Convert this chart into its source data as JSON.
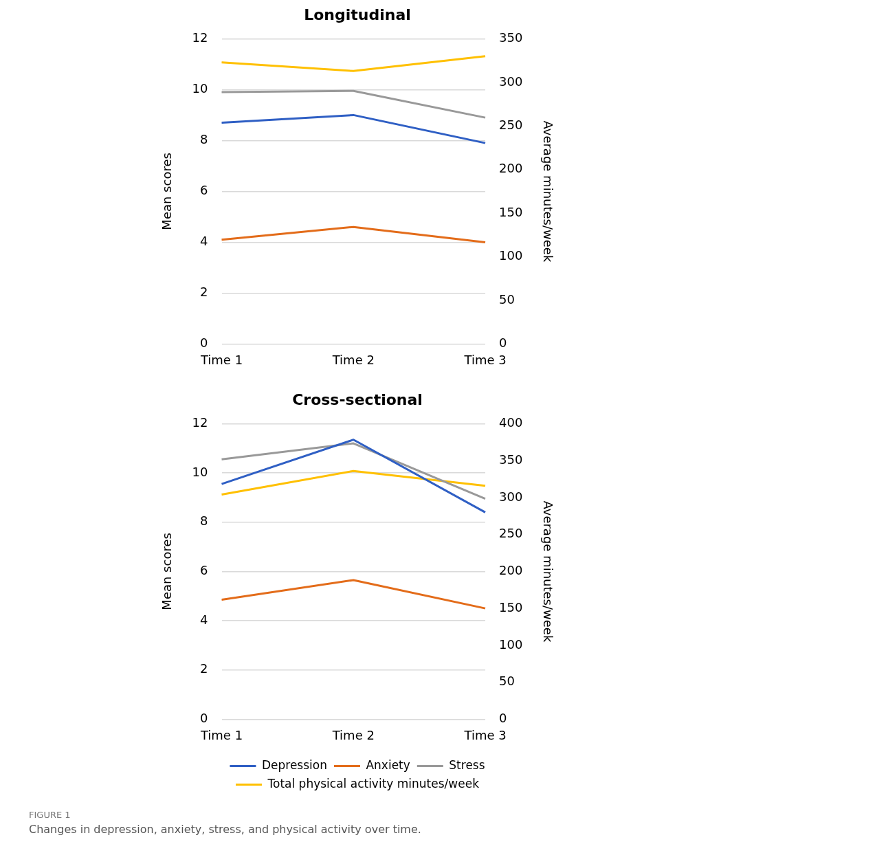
{
  "chart_data": [
    {
      "type": "line",
      "title": "Longitudinal",
      "ylabel": "Mean scores",
      "y2label": "Average minutes/week",
      "categories": [
        "Time 1",
        "Time 2",
        "Time 3"
      ],
      "ylim": [
        0,
        12
      ],
      "yticks": [
        0,
        2,
        4,
        6,
        8,
        10,
        12
      ],
      "y2lim": [
        0,
        350
      ],
      "y2ticks": [
        0,
        50,
        100,
        150,
        200,
        250,
        300,
        350
      ],
      "grid": "y",
      "legend": false,
      "marker": "none",
      "line_style": "solid",
      "series": [
        {
          "color": "#2f5fc4",
          "values": [
            8.7,
            9.0,
            7.9
          ]
        },
        {
          "color": "#e36c1a",
          "values": [
            4.1,
            4.6,
            4.0
          ]
        },
        {
          "color": "#999999",
          "values": [
            9.9,
            9.95,
            8.9
          ]
        },
        {
          "color": "#ffc000",
          "values": [
            323,
            313,
            330
          ],
          "axis": "y2"
        }
      ]
    },
    {
      "type": "line",
      "title": "Cross-sectional",
      "ylabel": "Mean scores",
      "y2label": "Average minutes/week",
      "categories": [
        "Time 1",
        "Time 2",
        "Time 3"
      ],
      "ylim": [
        0,
        12
      ],
      "yticks": [
        0,
        2,
        4,
        6,
        8,
        10,
        12
      ],
      "y2lim": [
        0,
        400
      ],
      "y2ticks": [
        0,
        50,
        100,
        150,
        200,
        250,
        300,
        350,
        400
      ],
      "grid": "y",
      "legend": "bottom",
      "marker": "none",
      "line_style": "solid",
      "annotations": [
        "FIGURE 1",
        "Changes in depression, anxiety, stress, and physical activity over time."
      ],
      "series": [
        {
          "name": "Depression",
          "color": "#2f5fc4",
          "values": [
            9.55,
            11.35,
            8.4
          ]
        },
        {
          "name": "Anxiety",
          "color": "#e36c1a",
          "values": [
            4.85,
            5.65,
            4.5
          ]
        },
        {
          "name": "Stress",
          "color": "#999999",
          "values": [
            10.55,
            11.2,
            8.95
          ]
        },
        {
          "name": "Total physical activity minutes/week",
          "color": "#ffc000",
          "values": [
            304,
            336,
            316
          ],
          "axis": "y2"
        }
      ]
    }
  ]
}
